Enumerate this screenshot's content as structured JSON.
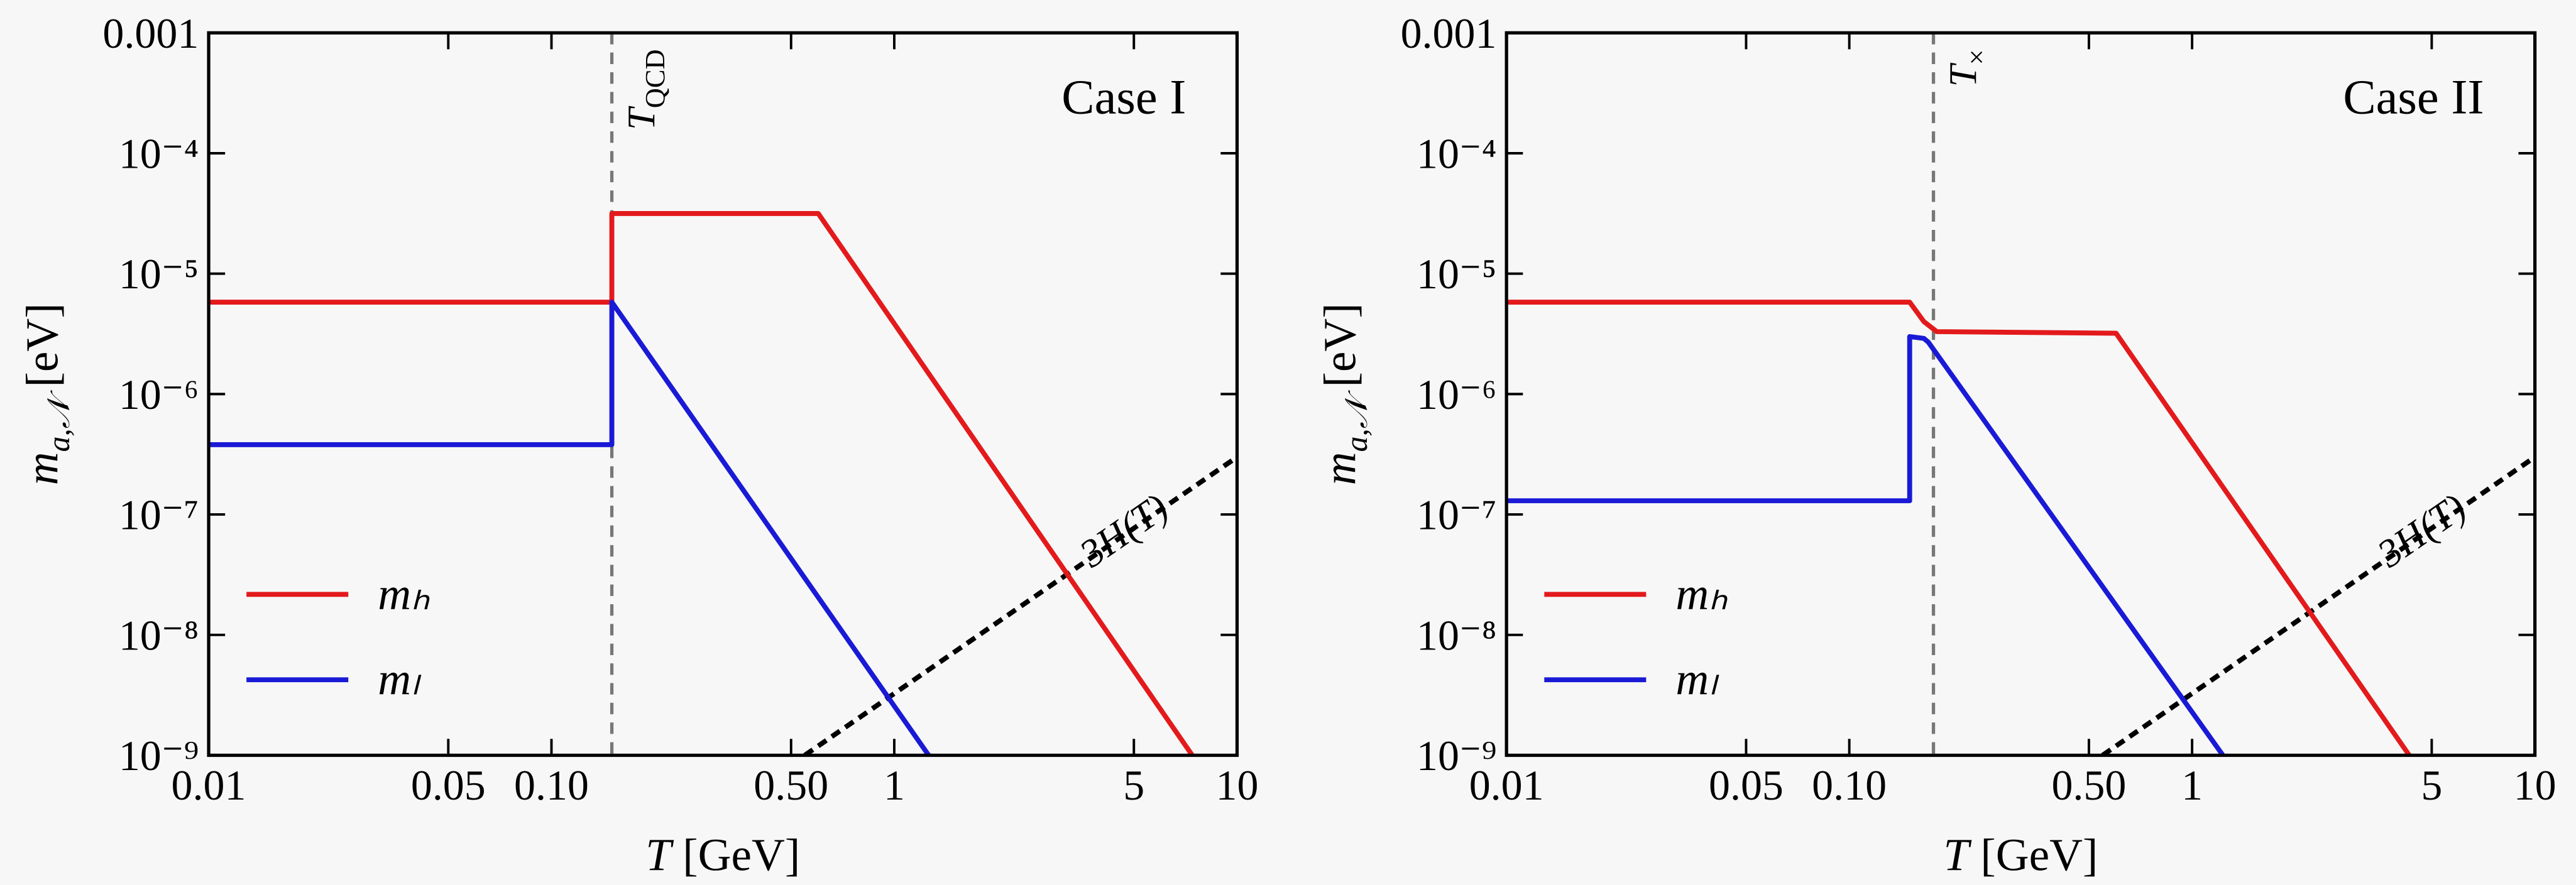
{
  "chart_data": [
    {
      "type": "line",
      "title": "Case I",
      "xlabel": {
        "symbol": "T",
        "unit": "[GeV]"
      },
      "ylabel": {
        "symbol": "m",
        "sub": "a,𝒩",
        "unit": "[eV]"
      },
      "log_x": true,
      "log_y": true,
      "xlim": [
        0.01,
        10
      ],
      "ylim": [
        1e-09,
        0.001
      ],
      "xticks": [
        0.01,
        0.05,
        {
          "value": 0.1,
          "label": "0.10"
        },
        {
          "value": 0.5,
          "label": "0.50"
        },
        1,
        5,
        10
      ],
      "yticks": [
        {
          "value": 1e-09,
          "label": "10⁻⁹"
        },
        {
          "value": 1e-08,
          "label": "10⁻⁸"
        },
        {
          "value": 1e-07,
          "label": "10⁻⁷"
        },
        {
          "value": 1e-06,
          "label": "10⁻⁶"
        },
        {
          "value": 1e-05,
          "label": "10⁻⁵"
        },
        {
          "value": 0.0001,
          "label": "10⁻⁴"
        },
        0.001
      ],
      "legend": "lower left",
      "series": [
        {
          "name": "mₕ",
          "color": "#e31a1c",
          "x": [
            0.01,
            0.15,
            0.15,
            0.6,
            7.4
          ],
          "values": [
            5.8e-06,
            5.8e-06,
            3.16e-05,
            3.16e-05,
            1e-09
          ]
        },
        {
          "name": "mₗ",
          "color": "#1a1ad6",
          "x": [
            0.01,
            0.15,
            0.15,
            1.26
          ],
          "values": [
            3.8e-07,
            3.8e-07,
            5.8e-06,
            1e-09
          ]
        }
      ],
      "reference_line": {
        "label": "3H(T)",
        "color": "#000000",
        "x": [
          0.548,
          10
        ],
        "values": [
          1e-09,
          3e-07
        ]
      },
      "vline": {
        "x": 0.15,
        "color": "#777777",
        "label": {
          "symbol": "T",
          "sub": "QCD"
        }
      }
    },
    {
      "type": "line",
      "title": "Case II",
      "xlabel": {
        "symbol": "T",
        "unit": "[GeV]"
      },
      "ylabel": {
        "symbol": "m",
        "sub": "a,𝒩",
        "unit": "[eV]"
      },
      "log_x": true,
      "log_y": true,
      "xlim": [
        0.01,
        10
      ],
      "ylim": [
        1e-09,
        0.001
      ],
      "xticks": [
        0.01,
        0.05,
        {
          "value": 0.1,
          "label": "0.10"
        },
        {
          "value": 0.5,
          "label": "0.50"
        },
        1,
        5,
        10
      ],
      "yticks": [
        {
          "value": 1e-09,
          "label": "10⁻⁹"
        },
        {
          "value": 1e-08,
          "label": "10⁻⁸"
        },
        {
          "value": 1e-07,
          "label": "10⁻⁷"
        },
        {
          "value": 1e-06,
          "label": "10⁻⁶"
        },
        {
          "value": 1e-05,
          "label": "10⁻⁵"
        },
        {
          "value": 0.0001,
          "label": "10⁻⁴"
        },
        0.001
      ],
      "legend": "lower left",
      "series": [
        {
          "name": "mₕ",
          "color": "#e31a1c",
          "x": [
            0.01,
            0.15,
            0.165,
            0.18,
            0.6,
            4.3
          ],
          "values": [
            5.8e-06,
            5.8e-06,
            4e-06,
            3.3e-06,
            3.2e-06,
            1e-09
          ]
        },
        {
          "name": "mₗ",
          "color": "#1a1ad6",
          "x": [
            0.01,
            0.15,
            0.15,
            0.165,
            0.17,
            1.23
          ],
          "values": [
            1.3e-07,
            1.3e-07,
            3e-06,
            2.9e-06,
            2.7e-06,
            1e-09
          ]
        }
      ],
      "reference_line": {
        "label": "3H(T)",
        "color": "#000000",
        "x": [
          0.548,
          10
        ],
        "values": [
          1e-09,
          3e-07
        ]
      },
      "vline": {
        "x": 0.176,
        "color": "#777777",
        "label": {
          "symbol": "T",
          "sub": "×"
        }
      }
    }
  ]
}
